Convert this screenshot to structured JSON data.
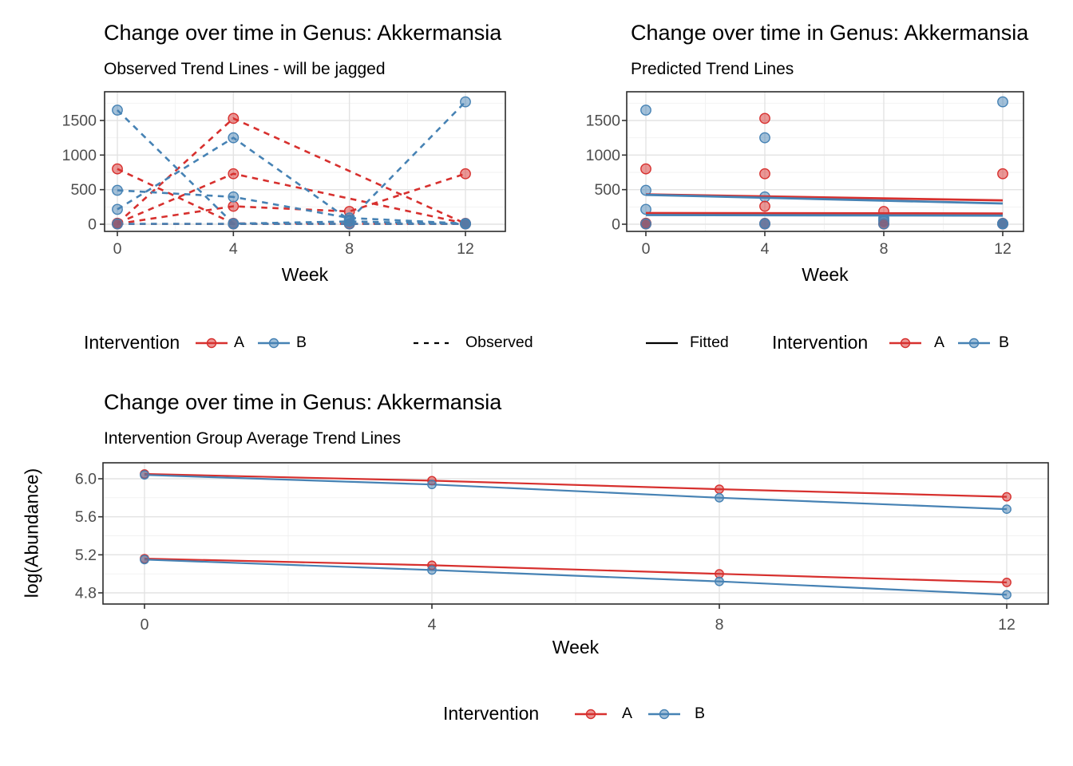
{
  "colors": {
    "intervention_a": "#D7302E",
    "intervention_b": "#4682B4",
    "fitted_key": "#000000",
    "observed_key": "#000000",
    "grid_major": "#E3E3E3",
    "grid_minor": "#F1F1F1",
    "panel_border": "#2B2B2B",
    "tick_mark": "#333333",
    "axis_text": "#4D4D4D",
    "title_text": "#000000"
  },
  "chart_data": [
    {
      "id": "observed",
      "type": "line",
      "title": "Change over time in Genus: Akkermansia",
      "subtitle": "Observed Trend Lines - will be jagged",
      "xlabel": "Week",
      "ylabel": "",
      "x_ticks": [
        0,
        4,
        8,
        12
      ],
      "y_ticks": [
        0,
        500,
        1000,
        1500
      ],
      "y_tick_labels": [
        "0",
        "500",
        "1000",
        "1500"
      ],
      "ylim": [
        -115,
        1915
      ],
      "grid": true,
      "line_style": "dashed",
      "legend_position": "bottom",
      "legend": {
        "title": "Intervention",
        "a_label": "A",
        "b_label": "B",
        "linetype_label": "Observed"
      },
      "series": [
        {
          "name": "subject-A1",
          "group": "A",
          "values": [
            [
              0,
              10
            ],
            [
              4,
              1530
            ],
            [
              12,
              8
            ]
          ]
        },
        {
          "name": "subject-A2",
          "group": "A",
          "values": [
            [
              0,
              800
            ],
            [
              4,
              12
            ],
            [
              8,
              6
            ],
            [
              12,
              6
            ]
          ]
        },
        {
          "name": "subject-A3",
          "group": "A",
          "values": [
            [
              0,
              14
            ],
            [
              4,
              730
            ],
            [
              12,
              12
            ]
          ]
        },
        {
          "name": "subject-A4",
          "group": "A",
          "values": [
            [
              0,
              6
            ],
            [
              4,
              260
            ],
            [
              8,
              185
            ],
            [
              12,
              730
            ]
          ]
        },
        {
          "name": "subject-A5",
          "group": "A",
          "values": [
            [
              0,
              3
            ],
            [
              4,
              3
            ],
            [
              8,
              3
            ],
            [
              12,
              3
            ]
          ]
        },
        {
          "name": "subject-B1",
          "group": "B",
          "values": [
            [
              0,
              1650
            ],
            [
              4,
              8
            ],
            [
              8,
              40
            ],
            [
              12,
              6
            ]
          ]
        },
        {
          "name": "subject-B2",
          "group": "B",
          "values": [
            [
              0,
              215
            ],
            [
              4,
              1250
            ],
            [
              8,
              60
            ],
            [
              12,
              1770
            ]
          ]
        },
        {
          "name": "subject-B3",
          "group": "B",
          "values": [
            [
              0,
              490
            ],
            [
              4,
              395
            ],
            [
              8,
              90
            ],
            [
              12,
              10
            ]
          ]
        },
        {
          "name": "subject-B4",
          "group": "B",
          "values": [
            [
              0,
              5
            ],
            [
              4,
              5
            ],
            [
              8,
              5
            ],
            [
              12,
              5
            ]
          ]
        }
      ]
    },
    {
      "id": "predicted",
      "type": "scatter",
      "title": "Change over time in Genus: Akkermansia",
      "subtitle": "Predicted Trend Lines",
      "xlabel": "Week",
      "ylabel": "",
      "x_ticks": [
        0,
        4,
        8,
        12
      ],
      "y_ticks": [
        0,
        500,
        1000,
        1500
      ],
      "y_tick_labels": [
        "0",
        "500",
        "1000",
        "1500"
      ],
      "ylim": [
        -115,
        1915
      ],
      "grid": true,
      "line_style": "solid",
      "legend_position": "bottom",
      "legend": {
        "fitted_label": "Fitted",
        "title": "Intervention",
        "a_label": "A",
        "b_label": "B"
      },
      "points": [
        [
          0,
          1650,
          "B"
        ],
        [
          0,
          800,
          "A"
        ],
        [
          0,
          490,
          "B"
        ],
        [
          0,
          215,
          "B"
        ],
        [
          0,
          14,
          "A"
        ],
        [
          0,
          10,
          "A"
        ],
        [
          0,
          6,
          "A"
        ],
        [
          0,
          3,
          "A"
        ],
        [
          0,
          5,
          "B"
        ],
        [
          4,
          1530,
          "A"
        ],
        [
          4,
          1250,
          "B"
        ],
        [
          4,
          730,
          "A"
        ],
        [
          4,
          395,
          "B"
        ],
        [
          4,
          260,
          "A"
        ],
        [
          4,
          12,
          "A"
        ],
        [
          4,
          3,
          "A"
        ],
        [
          4,
          8,
          "B"
        ],
        [
          4,
          5,
          "B"
        ],
        [
          8,
          185,
          "A"
        ],
        [
          8,
          90,
          "B"
        ],
        [
          8,
          60,
          "B"
        ],
        [
          8,
          40,
          "B"
        ],
        [
          8,
          6,
          "A"
        ],
        [
          8,
          3,
          "A"
        ],
        [
          8,
          5,
          "B"
        ],
        [
          12,
          1770,
          "B"
        ],
        [
          12,
          730,
          "A"
        ],
        [
          12,
          12,
          "A"
        ],
        [
          12,
          8,
          "A"
        ],
        [
          12,
          6,
          "A"
        ],
        [
          12,
          3,
          "A"
        ],
        [
          12,
          10,
          "B"
        ],
        [
          12,
          6,
          "B"
        ],
        [
          12,
          5,
          "B"
        ]
      ],
      "fitted": [
        {
          "name": "fitted-A-upper",
          "group": "A",
          "values": [
            [
              0,
              430
            ],
            [
              12,
              345
            ]
          ]
        },
        {
          "name": "fitted-B-upper",
          "group": "B",
          "values": [
            [
              0,
              425
            ],
            [
              12,
              300
            ]
          ]
        },
        {
          "name": "fitted-A-lower",
          "group": "A",
          "values": [
            [
              0,
              162
            ],
            [
              12,
              155
            ]
          ]
        },
        {
          "name": "fitted-B-lower",
          "group": "B",
          "values": [
            [
              0,
              133
            ],
            [
              12,
              125
            ]
          ]
        }
      ]
    },
    {
      "id": "average",
      "type": "line",
      "title": "Change over time in Genus: Akkermansia",
      "subtitle": "Intervention Group Average Trend Lines",
      "xlabel": "Week",
      "ylabel": "log(Abundance)",
      "x_ticks": [
        0,
        4,
        8,
        12
      ],
      "y_ticks": [
        6.0,
        5.6,
        5.2,
        4.8
      ],
      "y_tick_labels": [
        "6.0",
        "5.6",
        "5.2",
        "4.8"
      ],
      "ylim": [
        4.68,
        6.17
      ],
      "grid": true,
      "line_style": "solid",
      "legend_position": "bottom",
      "legend": {
        "title": "Intervention",
        "a_label": "A",
        "b_label": "B"
      },
      "series": [
        {
          "name": "A-mean-upper",
          "group": "A",
          "values": [
            [
              0,
              6.05
            ],
            [
              4,
              5.98
            ],
            [
              8,
              5.89
            ],
            [
              12,
              5.81
            ]
          ]
        },
        {
          "name": "B-mean-upper",
          "group": "B",
          "values": [
            [
              0,
              6.04
            ],
            [
              4,
              5.94
            ],
            [
              8,
              5.8
            ],
            [
              12,
              5.68
            ]
          ]
        },
        {
          "name": "A-mean-lower",
          "group": "A",
          "values": [
            [
              0,
              5.16
            ],
            [
              4,
              5.09
            ],
            [
              8,
              5.0
            ],
            [
              12,
              4.91
            ]
          ]
        },
        {
          "name": "B-mean-lower",
          "group": "B",
          "values": [
            [
              0,
              5.15
            ],
            [
              4,
              5.04
            ],
            [
              8,
              4.92
            ],
            [
              12,
              4.78
            ]
          ]
        }
      ]
    }
  ]
}
